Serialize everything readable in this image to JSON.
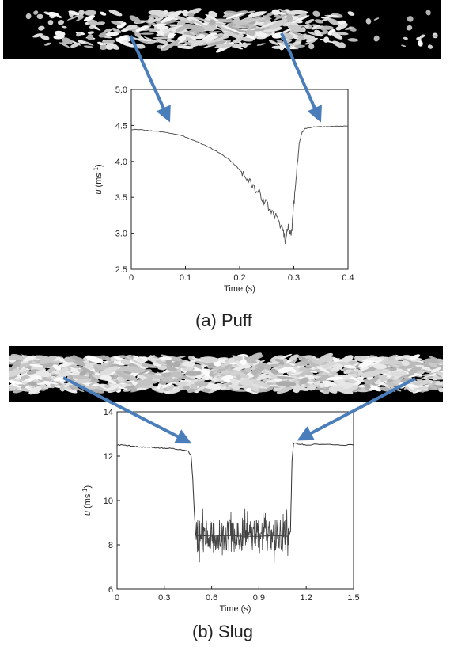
{
  "captions": {
    "a": "(a) Puff",
    "b": "(b) Slug"
  },
  "chart_data": [
    {
      "type": "line",
      "title": "",
      "xlabel": "Time (s)",
      "ylabel_main": "u",
      "ylabel_unit": "(ms",
      "ylabel_sup": "-1",
      "ylabel_close": ")",
      "xlim": [
        0,
        0.4
      ],
      "ylim": [
        2.5,
        5.0
      ],
      "xticks": [
        "0",
        "0.1",
        "0.2",
        "0.3",
        "0.4"
      ],
      "yticks": [
        "2.5",
        "3.0",
        "3.5",
        "4.0",
        "4.5",
        "5.0"
      ],
      "line_color": "#555555",
      "series": [
        {
          "x": [
            0,
            0.02,
            0.04,
            0.06,
            0.08,
            0.1,
            0.12,
            0.14,
            0.16,
            0.18,
            0.19,
            0.2,
            0.21,
            0.22,
            0.23,
            0.24,
            0.25,
            0.26,
            0.27,
            0.28,
            0.285,
            0.29,
            0.295,
            0.3,
            0.305,
            0.31,
            0.315,
            0.32,
            0.33,
            0.34,
            0.35,
            0.36,
            0.38,
            0.4
          ],
          "y": [
            4.44,
            4.44,
            4.42,
            4.41,
            4.38,
            4.34,
            4.28,
            4.21,
            4.13,
            4.03,
            3.96,
            3.88,
            3.8,
            3.7,
            3.6,
            3.52,
            3.4,
            3.28,
            3.2,
            3.05,
            2.88,
            3.15,
            2.92,
            3.4,
            3.85,
            4.25,
            4.4,
            4.45,
            4.47,
            4.48,
            4.48,
            4.48,
            4.49,
            4.49
          ]
        }
      ]
    },
    {
      "type": "line",
      "title": "",
      "xlabel": "Time (s)",
      "ylabel_main": "u",
      "ylabel_unit": "(ms",
      "ylabel_sup": "-1",
      "ylabel_close": ")",
      "xlim": [
        0,
        1.5
      ],
      "ylim": [
        6,
        14
      ],
      "xticks": [
        "0",
        "0.3",
        "0.6",
        "0.9",
        "1.2",
        "1.5"
      ],
      "yticks": [
        "6",
        "8",
        "10",
        "12",
        "14"
      ],
      "line_color": "#333333",
      "series": [
        {
          "x": [
            0,
            0.05,
            0.1,
            0.15,
            0.2,
            0.25,
            0.3,
            0.35,
            0.4,
            0.45,
            0.47,
            0.48,
            0.49,
            0.5,
            0.51,
            1.09,
            1.1,
            1.11,
            1.12,
            1.15,
            1.2,
            1.3,
            1.4,
            1.5
          ],
          "y": [
            12.5,
            12.5,
            12.45,
            12.4,
            12.4,
            12.38,
            12.35,
            12.35,
            12.3,
            12.25,
            12.0,
            11.0,
            9.5,
            8.4,
            8.4,
            8.4,
            8.6,
            11.8,
            12.6,
            12.55,
            12.5,
            12.55,
            12.5,
            12.5
          ]
        }
      ],
      "noise_band": {
        "x_start": 0.5,
        "x_end": 1.09,
        "mean": 8.4,
        "min": 7.1,
        "max": 9.6
      }
    }
  ]
}
